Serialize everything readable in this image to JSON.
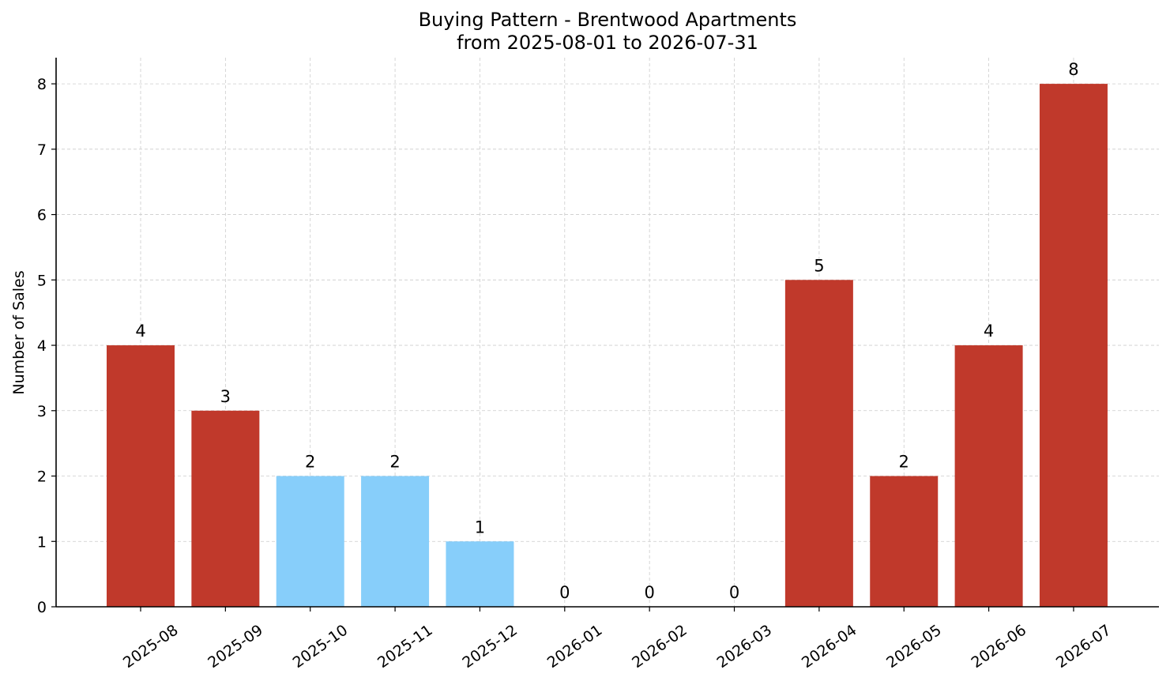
{
  "chart_data": {
    "type": "bar",
    "title": "Buying Pattern - Brentwood Apartments",
    "subtitle": "from 2025-08-01 to 2026-07-31",
    "xlabel": "",
    "ylabel": "Number of Sales",
    "categories": [
      "2025-08",
      "2025-09",
      "2025-10",
      "2025-11",
      "2025-12",
      "2026-01",
      "2026-02",
      "2026-03",
      "2026-04",
      "2026-05",
      "2026-06",
      "2026-07"
    ],
    "values": [
      4,
      3,
      2,
      2,
      1,
      0,
      0,
      0,
      5,
      2,
      4,
      8
    ],
    "bar_colors": [
      "#c0392b",
      "#c0392b",
      "#87cefa",
      "#87cefa",
      "#87cefa",
      "#87cefa",
      "#87cefa",
      "#87cefa",
      "#c0392b",
      "#c0392b",
      "#c0392b",
      "#c0392b"
    ],
    "yticks": [
      0,
      1,
      2,
      3,
      4,
      5,
      6,
      7,
      8
    ],
    "ylim": [
      0,
      8.4
    ],
    "grid": true,
    "legend": "none"
  }
}
